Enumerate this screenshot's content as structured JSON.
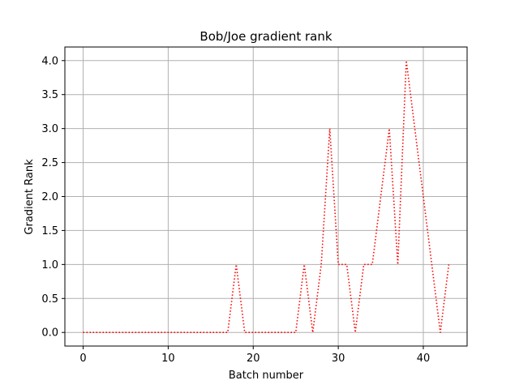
{
  "chart_data": {
    "type": "line",
    "title": "Bob/Joe gradient rank",
    "xlabel": "Batch number",
    "ylabel": "Gradient Rank",
    "xlim": [
      -2.15,
      45.15
    ],
    "ylim": [
      -0.2,
      4.2
    ],
    "xticks": [
      0,
      10,
      20,
      30,
      40
    ],
    "yticks": [
      0.0,
      0.5,
      1.0,
      1.5,
      2.0,
      2.5,
      3.0,
      3.5,
      4.0
    ],
    "ytick_labels": [
      "0.0",
      "0.5",
      "1.0",
      "1.5",
      "2.0",
      "2.5",
      "3.0",
      "3.5",
      "4.0"
    ],
    "grid": true,
    "series": [
      {
        "color": "#ff0000",
        "linestyle": "dotted",
        "x": [
          0,
          1,
          2,
          3,
          4,
          5,
          6,
          7,
          8,
          9,
          10,
          11,
          12,
          13,
          14,
          15,
          16,
          17,
          18,
          19,
          20,
          21,
          22,
          23,
          24,
          25,
          26,
          27,
          28,
          29,
          30,
          31,
          32,
          33,
          34,
          35,
          36,
          37,
          38,
          39,
          40,
          41,
          42,
          43
        ],
        "y": [
          0,
          0,
          0,
          0,
          0,
          0,
          0,
          0,
          0,
          0,
          0,
          0,
          0,
          0,
          0,
          0,
          0,
          0,
          1,
          0,
          0,
          0,
          0,
          0,
          0,
          0,
          1,
          0,
          1,
          3,
          1,
          1,
          0,
          1,
          1,
          2,
          3,
          1,
          4,
          3,
          2,
          1,
          0,
          1
        ]
      }
    ]
  }
}
